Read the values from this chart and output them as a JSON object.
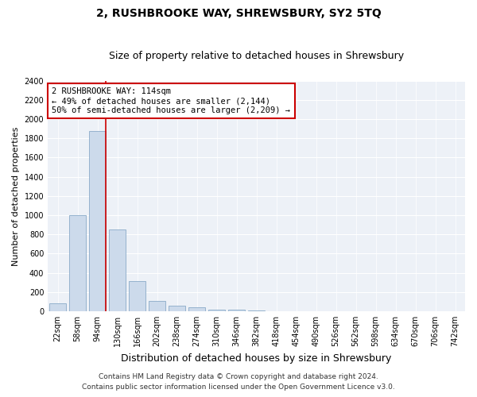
{
  "title": "2, RUSHBROOKE WAY, SHREWSBURY, SY2 5TQ",
  "subtitle": "Size of property relative to detached houses in Shrewsbury",
  "xlabel": "Distribution of detached houses by size in Shrewsbury",
  "ylabel": "Number of detached properties",
  "categories": [
    "22sqm",
    "58sqm",
    "94sqm",
    "130sqm",
    "166sqm",
    "202sqm",
    "238sqm",
    "274sqm",
    "310sqm",
    "346sqm",
    "382sqm",
    "418sqm",
    "454sqm",
    "490sqm",
    "526sqm",
    "562sqm",
    "598sqm",
    "634sqm",
    "670sqm",
    "706sqm",
    "742sqm"
  ],
  "values": [
    80,
    1000,
    1880,
    850,
    310,
    110,
    55,
    40,
    20,
    15,
    5,
    2,
    1,
    0,
    0,
    0,
    0,
    0,
    0,
    0,
    0
  ],
  "bar_color": "#ccdaeb",
  "bar_edge_color": "#8aaac8",
  "vline_color": "#cc0000",
  "vline_pos": 2.42,
  "annotation_text": "2 RUSHBROOKE WAY: 114sqm\n← 49% of detached houses are smaller (2,144)\n50% of semi-detached houses are larger (2,209) →",
  "annotation_box_color": "#ffffff",
  "annotation_box_edge": "#cc0000",
  "ylim": [
    0,
    2400
  ],
  "yticks": [
    0,
    200,
    400,
    600,
    800,
    1000,
    1200,
    1400,
    1600,
    1800,
    2000,
    2200,
    2400
  ],
  "footer1": "Contains HM Land Registry data © Crown copyright and database right 2024.",
  "footer2": "Contains public sector information licensed under the Open Government Licence v3.0.",
  "bg_color": "#edf1f7",
  "grid_color": "#ffffff",
  "title_fontsize": 10,
  "subtitle_fontsize": 9,
  "xlabel_fontsize": 9,
  "ylabel_fontsize": 8,
  "tick_fontsize": 7,
  "annot_fontsize": 7.5,
  "footer_fontsize": 6.5
}
